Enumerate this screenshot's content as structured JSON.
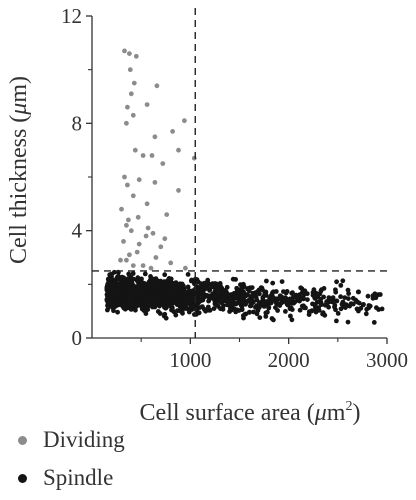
{
  "chart_data": {
    "type": "scatter",
    "xlabel_main": "Cell surface area (",
    "xlabel_mu": "μ",
    "xlabel_unit": "m",
    "xlabel_sup": "2",
    "xlabel_end": ")",
    "ylabel_main": "Cell thickness (",
    "ylabel_mu": "μ",
    "ylabel_unit": "m",
    "ylabel_end": ")",
    "xlim": [
      0,
      3000
    ],
    "ylim": [
      0,
      12
    ],
    "x_ticks": [
      "1000",
      "2000",
      "3000"
    ],
    "y_ticks": [
      "0",
      "4",
      "8",
      "12"
    ],
    "threshold_lines": {
      "vertical_x": 1050,
      "horizontal_y": 2.5,
      "style": "dashed"
    },
    "series": [
      {
        "name": "Dividing",
        "color": "#8c8c8c",
        "points": [
          [
            330,
            10.7
          ],
          [
            380,
            10.6
          ],
          [
            450,
            10.5
          ],
          [
            390,
            10.0
          ],
          [
            430,
            9.5
          ],
          [
            400,
            9.1
          ],
          [
            360,
            8.6
          ],
          [
            660,
            9.4
          ],
          [
            420,
            8.3
          ],
          [
            560,
            8.7
          ],
          [
            350,
            8.0
          ],
          [
            820,
            7.7
          ],
          [
            940,
            8.1
          ],
          [
            640,
            7.5
          ],
          [
            440,
            7.0
          ],
          [
            610,
            6.8
          ],
          [
            720,
            6.5
          ],
          [
            880,
            7.0
          ],
          [
            1040,
            6.7
          ],
          [
            520,
            6.8
          ],
          [
            330,
            6.0
          ],
          [
            360,
            5.7
          ],
          [
            640,
            5.8
          ],
          [
            880,
            5.5
          ],
          [
            420,
            5.3
          ],
          [
            300,
            4.8
          ],
          [
            470,
            4.5
          ],
          [
            760,
            4.6
          ],
          [
            560,
            5.0
          ],
          [
            350,
            4.2
          ],
          [
            400,
            4.0
          ],
          [
            620,
            3.9
          ],
          [
            320,
            3.6
          ],
          [
            480,
            3.5
          ],
          [
            700,
            3.4
          ],
          [
            550,
            3.8
          ],
          [
            380,
            3.1
          ],
          [
            460,
            3.2
          ],
          [
            650,
            3.0
          ],
          [
            290,
            2.9
          ],
          [
            800,
            2.8
          ],
          [
            520,
            2.7
          ],
          [
            600,
            2.6
          ],
          [
            350,
            2.9
          ],
          [
            420,
            2.7
          ],
          [
            570,
            4.1
          ],
          [
            370,
            4.4
          ],
          [
            950,
            2.6
          ],
          [
            480,
            5.9
          ],
          [
            740,
            3.7
          ]
        ]
      },
      {
        "name": "Spindle",
        "color": "#141414"
      }
    ],
    "legend": {
      "placement": "bottom-left",
      "entries": [
        "Dividing",
        "Spindle"
      ]
    }
  }
}
